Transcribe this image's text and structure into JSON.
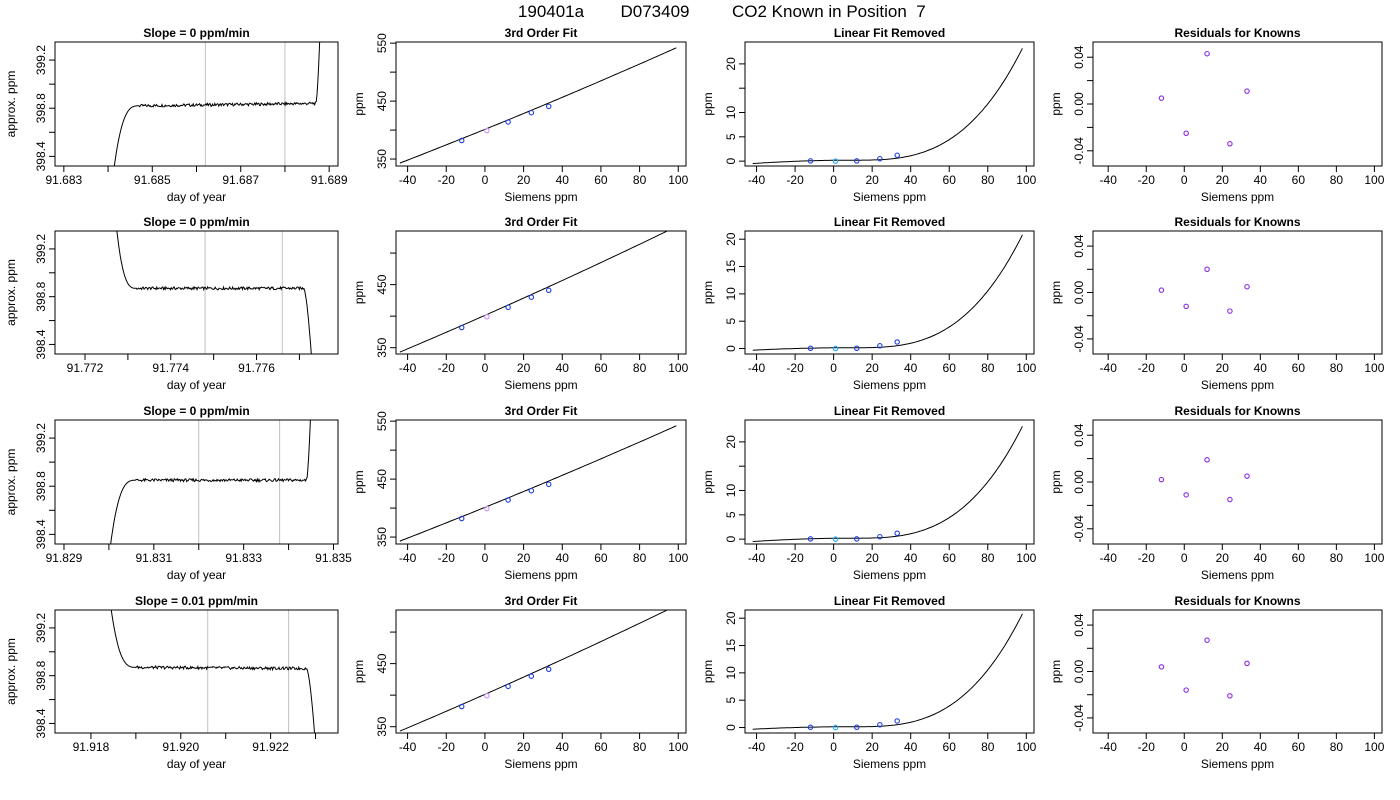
{
  "figure": {
    "title_parts": [
      "190401a",
      "D073409",
      "CO2 Known in Position  7"
    ]
  },
  "chart_data": [
    {
      "type": "line",
      "row": 0,
      "col": 0,
      "title": "Slope =  0  ppm/min",
      "xlabel": "day of year",
      "ylabel": "approx. ppm",
      "xlim": [
        91.6828,
        91.6892
      ],
      "ylim": [
        398.32,
        399.35
      ],
      "xticks": [
        91.683,
        91.685,
        91.687,
        91.689
      ],
      "xtick_minor": [
        91.684,
        91.686,
        91.688
      ],
      "yticks": [
        398.4,
        398.8,
        399.2
      ],
      "yminor": [
        398.6,
        399.0
      ],
      "vlines": [
        91.6862,
        91.688
      ],
      "profile": {
        "start": 91.6841,
        "rise_end": 91.6847,
        "fall_start": 91.6887,
        "end": 91.6888,
        "low": 398.2,
        "plateau": 398.82,
        "end_value": 399.5,
        "end_type": "up",
        "tail_start": 91.6882,
        "tail_value": 398.84,
        "amp": 0.012
      }
    },
    {
      "type": "line",
      "row": 1,
      "col": 0,
      "title": "Slope =  0  ppm/min",
      "xlabel": "day of year",
      "ylabel": "approx. ppm",
      "xlim": [
        91.7713,
        91.7779
      ],
      "ylim": [
        398.32,
        399.35
      ],
      "xticks": [
        91.772,
        91.774,
        91.776
      ],
      "xtick_minor": [
        91.773,
        91.775,
        91.777
      ],
      "yticks": [
        398.4,
        398.8,
        399.2
      ],
      "yminor": [
        398.6,
        399.0
      ],
      "vlines": [
        91.7748,
        91.7766
      ],
      "profile": {
        "start": 91.7727,
        "rise_end": 91.7732,
        "fall_start": 91.7771,
        "end": 91.7773,
        "low": 399.5,
        "plateau": 398.87,
        "end_value": 398.2,
        "end_type": "down",
        "tail_start": 91.7766,
        "tail_value": 398.87,
        "amp": 0.012
      }
    },
    {
      "type": "line",
      "row": 2,
      "col": 0,
      "title": "Slope =  0  ppm/min",
      "xlabel": "day of year",
      "ylabel": "approx. ppm",
      "xlim": [
        91.8288,
        91.8351
      ],
      "ylim": [
        398.32,
        399.35
      ],
      "xticks": [
        91.829,
        91.831,
        91.833,
        91.835
      ],
      "xtick_minor": [
        91.83,
        91.832,
        91.834
      ],
      "yticks": [
        398.4,
        398.8,
        399.2
      ],
      "yminor": [
        398.6,
        399.0
      ],
      "vlines": [
        91.832,
        91.8338
      ],
      "profile": {
        "start": 91.83,
        "rise_end": 91.8306,
        "fall_start": 91.8344,
        "end": 91.8345,
        "low": 398.2,
        "plateau": 398.85,
        "end_value": 399.5,
        "end_type": "up",
        "tail_start": 91.834,
        "tail_value": 398.85,
        "amp": 0.012
      }
    },
    {
      "type": "line",
      "row": 3,
      "col": 0,
      "title": "Slope =  0.01  ppm/min",
      "xlabel": "day of year",
      "ylabel": "approx. ppm",
      "xlim": [
        91.9172,
        91.9235
      ],
      "ylim": [
        398.32,
        399.35
      ],
      "xticks": [
        91.918,
        91.92,
        91.922
      ],
      "xtick_minor": [
        91.919,
        91.921,
        91.923
      ],
      "yticks": [
        398.4,
        398.8,
        399.2
      ],
      "yminor": [
        398.6,
        399.0
      ],
      "vlines": [
        91.9206,
        91.9224
      ],
      "profile": {
        "start": 91.9184,
        "rise_end": 91.919,
        "fall_start": 91.9228,
        "end": 91.923,
        "low": 399.5,
        "plateau": 398.87,
        "end_value": 398.2,
        "end_type": "down",
        "tail_start": 91.9224,
        "tail_value": 398.86,
        "amp": 0.012
      }
    },
    {
      "type": "line",
      "row": 0,
      "col": 1,
      "title": "3rd Order Fit",
      "xlabel": "Siemens ppm",
      "ylabel": "ppm",
      "xlim": [
        -46,
        104
      ],
      "ylim": [
        338,
        552
      ],
      "xticks": [
        -40,
        -20,
        0,
        20,
        40,
        60,
        80,
        100
      ],
      "yticks": [
        350,
        450,
        550
      ],
      "yminor": [
        400,
        500
      ],
      "curve": {
        "x0": -44,
        "x1": 99,
        "y0": 343,
        "y1": 542
      },
      "points": [
        {
          "x": -12,
          "y": 382,
          "color": "#1f3fe0"
        },
        {
          "x": 1,
          "y": 399,
          "color": "#d090ff"
        },
        {
          "x": 12,
          "y": 414,
          "color": "#1f3fe0"
        },
        {
          "x": 24,
          "y": 430,
          "color": "#1f3fe0"
        },
        {
          "x": 33,
          "y": 441,
          "color": "#1f3fe0"
        }
      ]
    },
    {
      "type": "line",
      "row": 1,
      "col": 1,
      "title": "3rd Order Fit",
      "xlabel": "Siemens ppm",
      "ylabel": "ppm",
      "xlim": [
        -46,
        104
      ],
      "ylim": [
        340,
        535
      ],
      "xticks": [
        -40,
        -20,
        0,
        20,
        40,
        60,
        80,
        100
      ],
      "yticks": [
        350,
        450
      ],
      "yminor": [
        400,
        500
      ],
      "curve": {
        "x0": -44,
        "x1": 99,
        "y0": 343,
        "y1": 542
      },
      "points": [
        {
          "x": -12,
          "y": 382,
          "color": "#1f3fe0"
        },
        {
          "x": 1,
          "y": 399,
          "color": "#d090ff"
        },
        {
          "x": 12,
          "y": 414,
          "color": "#1f3fe0"
        },
        {
          "x": 24,
          "y": 430,
          "color": "#1f3fe0"
        },
        {
          "x": 33,
          "y": 441,
          "color": "#1f3fe0"
        }
      ]
    },
    {
      "type": "line",
      "row": 2,
      "col": 1,
      "title": "3rd Order Fit",
      "xlabel": "Siemens ppm",
      "ylabel": "ppm",
      "xlim": [
        -46,
        104
      ],
      "ylim": [
        338,
        552
      ],
      "xticks": [
        -40,
        -20,
        0,
        20,
        40,
        60,
        80,
        100
      ],
      "yticks": [
        350,
        450,
        550
      ],
      "yminor": [
        400,
        500
      ],
      "curve": {
        "x0": -44,
        "x1": 99,
        "y0": 343,
        "y1": 542
      },
      "points": [
        {
          "x": -12,
          "y": 382,
          "color": "#1f3fe0"
        },
        {
          "x": 1,
          "y": 399,
          "color": "#d090ff"
        },
        {
          "x": 12,
          "y": 414,
          "color": "#1f3fe0"
        },
        {
          "x": 24,
          "y": 430,
          "color": "#1f3fe0"
        },
        {
          "x": 33,
          "y": 441,
          "color": "#1f3fe0"
        }
      ]
    },
    {
      "type": "line",
      "row": 3,
      "col": 1,
      "title": "3rd Order Fit",
      "xlabel": "Siemens ppm",
      "ylabel": "ppm",
      "xlim": [
        -46,
        104
      ],
      "ylim": [
        340,
        535
      ],
      "xticks": [
        -40,
        -20,
        0,
        20,
        40,
        60,
        80,
        100
      ],
      "yticks": [
        350,
        450
      ],
      "yminor": [
        400,
        500
      ],
      "curve": {
        "x0": -44,
        "x1": 99,
        "y0": 343,
        "y1": 542
      },
      "points": [
        {
          "x": -12,
          "y": 382,
          "color": "#1f3fe0"
        },
        {
          "x": 1,
          "y": 399,
          "color": "#d090ff"
        },
        {
          "x": 12,
          "y": 414,
          "color": "#1f3fe0"
        },
        {
          "x": 24,
          "y": 430,
          "color": "#1f3fe0"
        },
        {
          "x": 33,
          "y": 441,
          "color": "#1f3fe0"
        }
      ]
    },
    {
      "type": "line",
      "row": 0,
      "col": 2,
      "title": "Linear Fit Removed",
      "xlabel": "Siemens ppm",
      "ylabel": "ppm",
      "xlim": [
        -46,
        104
      ],
      "ylim": [
        -1,
        24.5
      ],
      "xticks": [
        -40,
        -20,
        0,
        20,
        40,
        60,
        80,
        100
      ],
      "yticks": [
        0,
        5,
        10,
        20
      ],
      "yminor": [
        15
      ],
      "curve": {
        "x0": -42,
        "x1": 98,
        "y0": -0.5,
        "y1": 23.2,
        "y_at_0": 0.2,
        "cube_x0": 10
      },
      "points": [
        {
          "x": -12,
          "y": 0.05,
          "color": "#1f3fe0"
        },
        {
          "x": 1,
          "y": 0.0,
          "color": "#1fa9ff"
        },
        {
          "x": 12,
          "y": 0.05,
          "color": "#1f3fe0"
        },
        {
          "x": 24,
          "y": 0.5,
          "color": "#1f3fe0"
        },
        {
          "x": 33,
          "y": 1.2,
          "color": "#1f3fe0"
        }
      ]
    },
    {
      "type": "line",
      "row": 1,
      "col": 2,
      "title": "Linear Fit Removed",
      "xlabel": "Siemens ppm",
      "ylabel": "ppm",
      "xlim": [
        -46,
        104
      ],
      "ylim": [
        -1,
        21.5
      ],
      "xticks": [
        -40,
        -20,
        0,
        20,
        40,
        60,
        80,
        100
      ],
      "yticks": [
        0,
        5,
        10,
        15,
        20
      ],
      "yminor": [],
      "curve": {
        "x0": -42,
        "x1": 98,
        "y0": -0.3,
        "y1": 20.8,
        "y_at_0": 0.15,
        "cube_x0": 10
      },
      "points": [
        {
          "x": -12,
          "y": 0.05,
          "color": "#1f3fe0"
        },
        {
          "x": 1,
          "y": 0.0,
          "color": "#1fa9ff"
        },
        {
          "x": 12,
          "y": 0.05,
          "color": "#1f3fe0"
        },
        {
          "x": 24,
          "y": 0.5,
          "color": "#1f3fe0"
        },
        {
          "x": 33,
          "y": 1.2,
          "color": "#1f3fe0"
        }
      ]
    },
    {
      "type": "line",
      "row": 2,
      "col": 2,
      "title": "Linear Fit Removed",
      "xlabel": "Siemens ppm",
      "ylabel": "ppm",
      "xlim": [
        -46,
        104
      ],
      "ylim": [
        -1,
        24.5
      ],
      "xticks": [
        -40,
        -20,
        0,
        20,
        40,
        60,
        80,
        100
      ],
      "yticks": [
        0,
        5,
        10,
        20
      ],
      "yminor": [
        15
      ],
      "curve": {
        "x0": -42,
        "x1": 98,
        "y0": -0.5,
        "y1": 23.2,
        "y_at_0": 0.2,
        "cube_x0": 10
      },
      "points": [
        {
          "x": -12,
          "y": 0.05,
          "color": "#1f3fe0"
        },
        {
          "x": 1,
          "y": 0.0,
          "color": "#1fa9ff"
        },
        {
          "x": 12,
          "y": 0.05,
          "color": "#1f3fe0"
        },
        {
          "x": 24,
          "y": 0.5,
          "color": "#1f3fe0"
        },
        {
          "x": 33,
          "y": 1.2,
          "color": "#1f3fe0"
        }
      ]
    },
    {
      "type": "line",
      "row": 3,
      "col": 2,
      "title": "Linear Fit Removed",
      "xlabel": "Siemens ppm",
      "ylabel": "ppm",
      "xlim": [
        -46,
        104
      ],
      "ylim": [
        -1,
        21.5
      ],
      "xticks": [
        -40,
        -20,
        0,
        20,
        40,
        60,
        80,
        100
      ],
      "yticks": [
        0,
        5,
        10,
        15,
        20
      ],
      "yminor": [],
      "curve": {
        "x0": -42,
        "x1": 98,
        "y0": -0.3,
        "y1": 20.8,
        "y_at_0": 0.15,
        "cube_x0": 10
      },
      "points": [
        {
          "x": -12,
          "y": 0.05,
          "color": "#1f3fe0"
        },
        {
          "x": 1,
          "y": 0.0,
          "color": "#1fa9ff"
        },
        {
          "x": 12,
          "y": 0.05,
          "color": "#1f3fe0"
        },
        {
          "x": 24,
          "y": 0.5,
          "color": "#1f3fe0"
        },
        {
          "x": 33,
          "y": 1.2,
          "color": "#1f3fe0"
        }
      ]
    },
    {
      "type": "scatter",
      "row": 0,
      "col": 3,
      "title": "Residuals for Knowns",
      "xlabel": "Siemens ppm",
      "ylabel": "ppm",
      "xlim": [
        -48,
        104
      ],
      "ylim": [
        -0.053,
        0.053
      ],
      "xticks": [
        -40,
        -20,
        0,
        20,
        40,
        60,
        80,
        100
      ],
      "yticks": [
        -0.04,
        0.0,
        0.04
      ],
      "yminor": [
        -0.02,
        0.02
      ],
      "points": [
        {
          "x": -12,
          "y": 0.005,
          "color": "#8a2be2"
        },
        {
          "x": 1,
          "y": -0.025,
          "color": "#8a2be2"
        },
        {
          "x": 12,
          "y": 0.043,
          "color": "#8a2be2"
        },
        {
          "x": 24,
          "y": -0.034,
          "color": "#8a2be2"
        },
        {
          "x": 33,
          "y": 0.011,
          "color": "#8a2be2"
        }
      ]
    },
    {
      "type": "scatter",
      "row": 1,
      "col": 3,
      "title": "Residuals for Knowns",
      "xlabel": "Siemens ppm",
      "ylabel": "ppm",
      "xlim": [
        -48,
        104
      ],
      "ylim": [
        -0.053,
        0.053
      ],
      "xticks": [
        -40,
        -20,
        0,
        20,
        40,
        60,
        80,
        100
      ],
      "yticks": [
        -0.04,
        0.0,
        0.04
      ],
      "yminor": [
        -0.02,
        0.02
      ],
      "points": [
        {
          "x": -12,
          "y": 0.002,
          "color": "#8a2be2"
        },
        {
          "x": 1,
          "y": -0.012,
          "color": "#8a2be2"
        },
        {
          "x": 12,
          "y": 0.02,
          "color": "#8a2be2"
        },
        {
          "x": 24,
          "y": -0.016,
          "color": "#8a2be2"
        },
        {
          "x": 33,
          "y": 0.005,
          "color": "#8a2be2"
        }
      ]
    },
    {
      "type": "scatter",
      "row": 2,
      "col": 3,
      "title": "Residuals for Knowns",
      "xlabel": "Siemens ppm",
      "ylabel": "ppm",
      "xlim": [
        -48,
        104
      ],
      "ylim": [
        -0.053,
        0.053
      ],
      "xticks": [
        -40,
        -20,
        0,
        20,
        40,
        60,
        80,
        100
      ],
      "yticks": [
        -0.04,
        0.0,
        0.04
      ],
      "yminor": [
        -0.02,
        0.02
      ],
      "points": [
        {
          "x": -12,
          "y": 0.002,
          "color": "#8a2be2"
        },
        {
          "x": 1,
          "y": -0.011,
          "color": "#8a2be2"
        },
        {
          "x": 12,
          "y": 0.019,
          "color": "#8a2be2"
        },
        {
          "x": 24,
          "y": -0.015,
          "color": "#8a2be2"
        },
        {
          "x": 33,
          "y": 0.005,
          "color": "#8a2be2"
        }
      ]
    },
    {
      "type": "scatter",
      "row": 3,
      "col": 3,
      "title": "Residuals for Knowns",
      "xlabel": "Siemens ppm",
      "ylabel": "ppm",
      "xlim": [
        -48,
        104
      ],
      "ylim": [
        -0.053,
        0.053
      ],
      "xticks": [
        -40,
        -20,
        0,
        20,
        40,
        60,
        80,
        100
      ],
      "yticks": [
        -0.04,
        0.0,
        0.04
      ],
      "yminor": [
        -0.02,
        0.02
      ],
      "points": [
        {
          "x": -12,
          "y": 0.004,
          "color": "#8a2be2"
        },
        {
          "x": 1,
          "y": -0.016,
          "color": "#8a2be2"
        },
        {
          "x": 12,
          "y": 0.027,
          "color": "#8a2be2"
        },
        {
          "x": 24,
          "y": -0.021,
          "color": "#8a2be2"
        },
        {
          "x": 33,
          "y": 0.007,
          "color": "#8a2be2"
        }
      ]
    }
  ]
}
